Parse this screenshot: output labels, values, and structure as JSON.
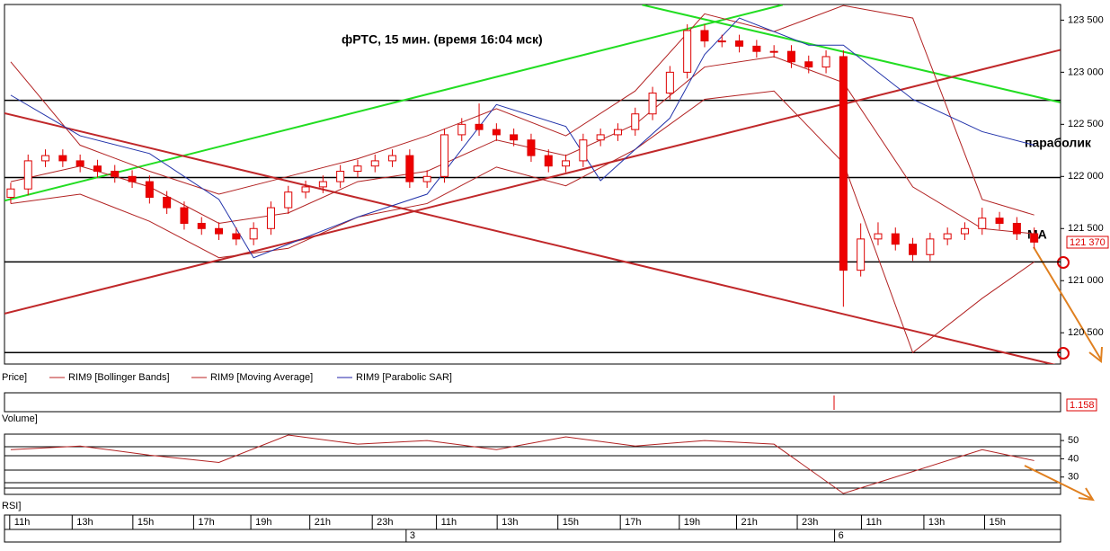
{
  "chart_data": {
    "type": "candlestick",
    "title": "фРТС,  15 мин.  (время 16:04 мск)",
    "annotations": {
      "sar_note": "параболик",
      "ma_note": "МА"
    },
    "legend": {
      "price": "Price]",
      "bb": "RIM9 [Bollinger Bands]",
      "ma": "RIM9 [Moving Average]",
      "sar": "RIM9 [Parabolic SAR]"
    },
    "last_price_label": "121 370",
    "volume": {
      "title": "Volume]",
      "last_label": "1.158"
    },
    "xlim": [
      -0.36,
      60.52
    ],
    "ylim": [
      120200,
      123650
    ],
    "yticks": [
      {
        "value": 123500,
        "label": "123 500"
      },
      {
        "value": 123000,
        "label": "123 000"
      },
      {
        "value": 122500,
        "label": "122 500"
      },
      {
        "value": 122000,
        "label": "122 000"
      },
      {
        "value": 121500,
        "label": "121 500"
      },
      {
        "value": 121000,
        "label": "121 000"
      },
      {
        "value": 120500,
        "label": "120 500"
      }
    ],
    "xticks": [
      {
        "value": 0.2,
        "label": "11h"
      },
      {
        "value": 3.8,
        "label": "13h"
      },
      {
        "value": 7.3,
        "label": "15h"
      },
      {
        "value": 10.8,
        "label": "17h"
      },
      {
        "value": 14.1,
        "label": "19h"
      },
      {
        "value": 17.5,
        "label": "21h"
      },
      {
        "value": 21.1,
        "label": "23h"
      },
      {
        "value": 24.8,
        "label": "11h"
      },
      {
        "value": 28.3,
        "label": "13h"
      },
      {
        "value": 31.8,
        "label": "15h"
      },
      {
        "value": 35.4,
        "label": "17h"
      },
      {
        "value": 38.8,
        "label": "19h"
      },
      {
        "value": 42.1,
        "label": "21h"
      },
      {
        "value": 45.6,
        "label": "23h"
      },
      {
        "value": 49.3,
        "label": "11h"
      },
      {
        "value": 52.9,
        "label": "13h"
      },
      {
        "value": 56.4,
        "label": "15h"
      }
    ],
    "day_ticks": [
      {
        "value": 23,
        "label": "3"
      },
      {
        "value": 47.7,
        "label": "6"
      }
    ],
    "open": [
      121800,
      121880,
      122150,
      122200,
      122150,
      122100,
      122050,
      122000,
      121950,
      121800,
      121700,
      121550,
      121500,
      121450,
      121400,
      121500,
      121700,
      121850,
      121900,
      121950,
      122050,
      122100,
      122150,
      122200,
      121950,
      122000,
      122400,
      122500,
      122450,
      122400,
      122350,
      122200,
      122100,
      122150,
      122350,
      122400,
      122450,
      122600,
      122800,
      123000,
      123400,
      123300,
      123300,
      123250,
      123200,
      123200,
      123100,
      123050,
      123150,
      121100,
      121400,
      121450,
      121350,
      121250,
      121400,
      121450,
      121500,
      121600,
      121550,
      121450
    ],
    "high": [
      121940,
      122210,
      122260,
      122260,
      122210,
      122160,
      122110,
      122060,
      122010,
      121860,
      121760,
      121610,
      121560,
      121510,
      121560,
      121760,
      121910,
      121960,
      122010,
      122110,
      122160,
      122210,
      122260,
      122260,
      122060,
      122460,
      122560,
      122700,
      122510,
      122460,
      122410,
      122260,
      122210,
      122410,
      122460,
      122510,
      122660,
      122860,
      123060,
      123460,
      123460,
      123360,
      123360,
      123310,
      123260,
      123260,
      123160,
      123210,
      123210,
      121550,
      121560,
      121510,
      121410,
      121460,
      121510,
      121560,
      121700,
      121660,
      121610,
      121510
    ],
    "low": [
      121740,
      121820,
      122090,
      122090,
      122040,
      121990,
      121940,
      121890,
      121740,
      121640,
      121490,
      121440,
      121390,
      121340,
      121340,
      121440,
      121640,
      121790,
      121840,
      121890,
      121990,
      122040,
      122090,
      121890,
      121890,
      121940,
      122340,
      122390,
      122340,
      122290,
      122140,
      122040,
      122040,
      122090,
      122290,
      122340,
      122390,
      122540,
      122740,
      122940,
      123240,
      123240,
      123190,
      123140,
      123140,
      123040,
      122990,
      122990,
      120750,
      121040,
      121340,
      121290,
      121190,
      121190,
      121340,
      121390,
      121440,
      121490,
      121390,
      121310
    ],
    "close": [
      121880,
      122150,
      122200,
      122150,
      122100,
      122050,
      122000,
      121950,
      121800,
      121700,
      121550,
      121500,
      121450,
      121400,
      121500,
      121700,
      121850,
      121900,
      121950,
      122050,
      122100,
      122150,
      122200,
      121950,
      122000,
      122400,
      122500,
      122450,
      122400,
      122350,
      122200,
      122100,
      122150,
      122350,
      122400,
      122450,
      122600,
      122800,
      123000,
      123400,
      123300,
      123300,
      123250,
      123200,
      123200,
      123100,
      123050,
      123150,
      121100,
      121400,
      121450,
      121350,
      121250,
      121400,
      121450,
      121500,
      121600,
      121550,
      121450,
      121370
    ],
    "ind_x": [
      0,
      4,
      8,
      12,
      16,
      20,
      24,
      28,
      32,
      36,
      40,
      44,
      48,
      52,
      56,
      59
    ],
    "bb_upper": [
      123100,
      122300,
      122050,
      121830,
      122000,
      122170,
      122390,
      122650,
      122390,
      122820,
      123560,
      123390,
      123640,
      123520,
      121780,
      121630
    ],
    "bb_lower": [
      121740,
      121830,
      121570,
      121220,
      121310,
      121610,
      121740,
      122090,
      121910,
      122260,
      122740,
      122820,
      122130,
      120310,
      120830,
      121180
    ],
    "ma": [
      121950,
      122100,
      121900,
      121550,
      121650,
      121950,
      122050,
      122350,
      122200,
      122500,
      123050,
      123150,
      122900,
      121900,
      121500,
      121450
    ],
    "sar_x": [
      0,
      4,
      8,
      12,
      14,
      20,
      24,
      28,
      32,
      34,
      38,
      40,
      42,
      46,
      48,
      52,
      56,
      59
    ],
    "sar": [
      122780,
      122390,
      122220,
      121780,
      121220,
      121610,
      121830,
      122690,
      122480,
      121960,
      122560,
      123170,
      123520,
      123260,
      123260,
      122740,
      122430,
      122300
    ],
    "levels": [
      122730,
      121990,
      121180,
      120310
    ],
    "green_lines": [
      {
        "x": [
          -0.36,
          44.5
        ],
        "y": [
          121767,
          123647
        ]
      },
      {
        "x": [
          36.4,
          60.5
        ],
        "y": [
          123647,
          122711
        ]
      }
    ],
    "red_lines": [
      {
        "x": [
          -0.36,
          60.5
        ],
        "y": [
          120684,
          123214
        ]
      },
      {
        "x": [
          -0.36,
          60.5
        ],
        "y": [
          122607,
          120181
        ]
      }
    ],
    "rsi": {
      "title": "RSI]",
      "ylim": [
        20.5,
        53.5
      ],
      "yticks": [
        50,
        40,
        30
      ],
      "values": [
        45,
        47,
        42,
        38,
        53,
        48,
        50,
        45,
        52,
        47,
        50,
        48,
        21,
        33,
        45,
        39
      ]
    }
  }
}
